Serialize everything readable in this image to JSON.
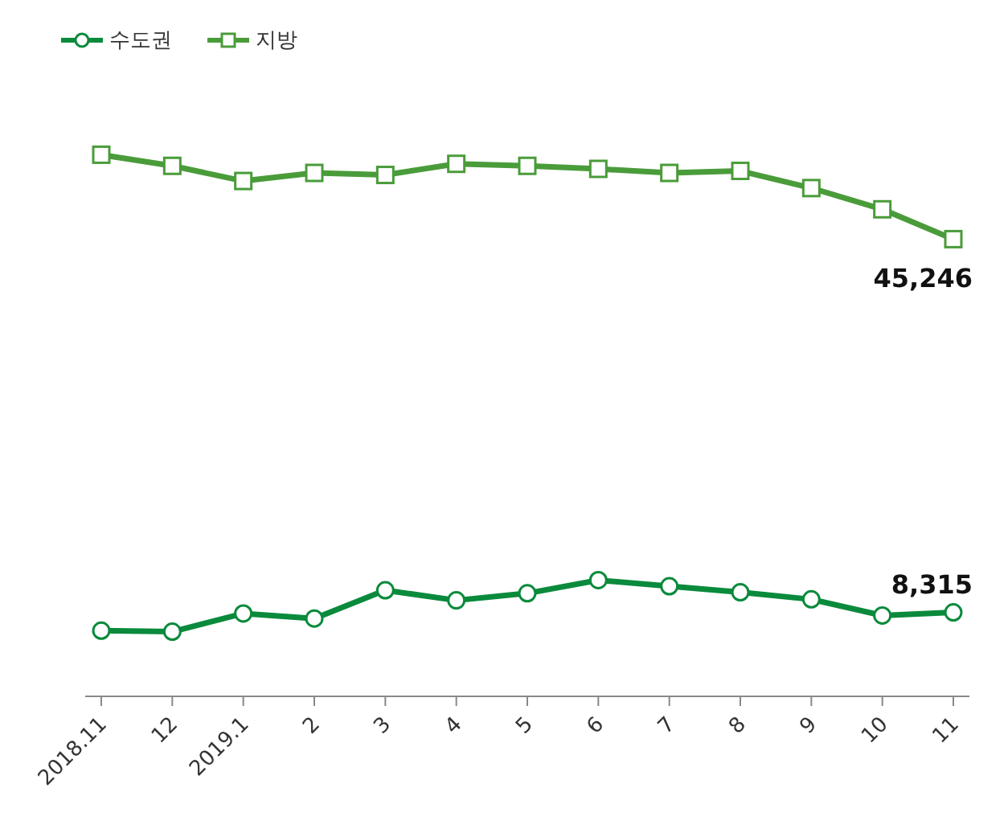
{
  "chart_data": {
    "type": "line",
    "categories": [
      "2018.11",
      "12",
      "2019.1",
      "2",
      "3",
      "4",
      "5",
      "6",
      "7",
      "8",
      "9",
      "10",
      "11"
    ],
    "series": [
      {
        "name": "수도권",
        "color": "#0a8a3c",
        "marker": "circle",
        "values": [
          6500,
          6400,
          8200,
          7700,
          10500,
          9500,
          10200,
          11500,
          10900,
          10300,
          9600,
          8000,
          8315
        ],
        "value_labels": [
          null,
          null,
          null,
          null,
          null,
          null,
          null,
          null,
          null,
          null,
          null,
          null,
          "8,315"
        ]
      },
      {
        "name": "지방",
        "color": "#4a9c3a",
        "marker": "square",
        "values": [
          53600,
          52500,
          51000,
          51800,
          51600,
          52700,
          52500,
          52200,
          51800,
          52000,
          50300,
          48200,
          45246
        ],
        "value_labels": [
          null,
          null,
          null,
          null,
          null,
          null,
          null,
          null,
          null,
          null,
          null,
          null,
          "45,246"
        ]
      }
    ],
    "tick_labels": "x",
    "legend": "top left",
    "grid": false
  }
}
